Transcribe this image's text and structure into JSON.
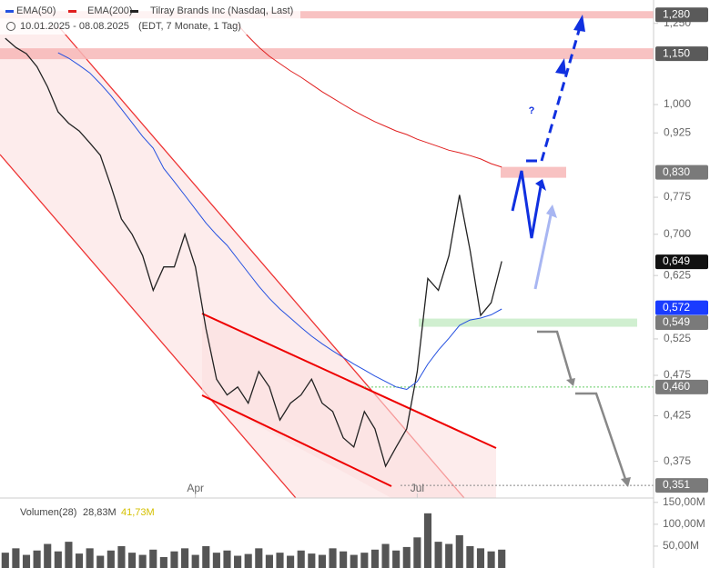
{
  "chart_data": {
    "type": "line",
    "title": "Tilray Brands Inc (Nasdaq, Last)",
    "subtitle": "10.01.2025 - 08.08.2025",
    "subtitle_note": "(EDT, 7 Monate, 1 Tag)",
    "categories": [
      null,
      null,
      null,
      null,
      null,
      null,
      null,
      null,
      null,
      null,
      null,
      null,
      null,
      null,
      null,
      null,
      null,
      null,
      "Apr",
      null,
      null,
      null,
      null,
      null,
      null,
      null,
      null,
      null,
      null,
      null,
      null,
      null,
      null,
      null,
      null,
      null,
      null,
      null,
      null,
      "Jul",
      null,
      null,
      null,
      null,
      null,
      null,
      null,
      null
    ],
    "log_scale": true,
    "ylim": [
      0.339,
      1.333
    ],
    "yticks": [
      {
        "value": 1.25,
        "label": "1,250"
      },
      {
        "value": 1.0,
        "label": "1,000"
      },
      {
        "value": 0.925,
        "label": "0,925"
      },
      {
        "value": 0.775,
        "label": "0,775"
      },
      {
        "value": 0.7,
        "label": "0,700"
      },
      {
        "value": 0.625,
        "label": "0,625"
      },
      {
        "value": 0.525,
        "label": "0,525"
      },
      {
        "value": 0.475,
        "label": "0,475"
      },
      {
        "value": 0.425,
        "label": "0,425"
      },
      {
        "value": 0.375,
        "label": "0,375"
      }
    ],
    "series": [
      {
        "name": "Tilray Brands Inc (Nasdaq, Last)",
        "color": "#222222",
        "values": [
          1.2,
          1.17,
          1.15,
          1.11,
          1.05,
          0.98,
          0.95,
          0.93,
          0.9,
          0.87,
          0.8,
          0.73,
          0.7,
          0.66,
          0.6,
          0.64,
          0.64,
          0.7,
          0.64,
          0.54,
          0.47,
          0.45,
          0.46,
          0.44,
          0.48,
          0.46,
          0.42,
          0.44,
          0.45,
          0.47,
          0.44,
          0.43,
          0.4,
          0.39,
          0.43,
          0.41,
          0.37,
          0.39,
          0.41,
          0.48,
          0.62,
          0.6,
          0.66,
          0.78,
          0.67,
          0.56,
          0.58,
          0.65
        ]
      },
      {
        "name": "EMA(50)",
        "color": "#2450e0",
        "values": [
          null,
          null,
          null,
          null,
          null,
          1.153,
          1.136,
          1.114,
          1.091,
          1.059,
          1.025,
          0.988,
          0.951,
          0.916,
          0.887,
          0.839,
          0.809,
          0.779,
          0.75,
          0.722,
          0.699,
          0.679,
          0.654,
          0.63,
          0.607,
          0.587,
          0.57,
          0.556,
          0.542,
          0.529,
          0.518,
          0.508,
          0.499,
          0.49,
          0.482,
          0.474,
          0.467,
          0.46,
          0.457,
          0.467,
          0.49,
          0.509,
          0.526,
          0.545,
          0.553,
          0.556,
          0.561,
          0.57
        ]
      },
      {
        "name": "EMA(200)",
        "color": "#e02020",
        "values": [
          null,
          null,
          null,
          null,
          null,
          null,
          null,
          null,
          null,
          null,
          null,
          null,
          null,
          null,
          null,
          null,
          null,
          null,
          null,
          null,
          null,
          null,
          1.246,
          1.206,
          1.171,
          1.142,
          1.119,
          1.097,
          1.078,
          1.057,
          1.036,
          1.018,
          1.0,
          0.983,
          0.968,
          0.954,
          0.942,
          0.93,
          0.921,
          0.909,
          0.9,
          0.891,
          0.882,
          0.876,
          0.869,
          0.861,
          0.85,
          0.842
        ]
      }
    ],
    "price_labels": [
      {
        "value": 1.28,
        "label": "1,280",
        "color": "#5a5a5a"
      },
      {
        "value": 1.15,
        "label": "1,150",
        "color": "#5a5a5a"
      },
      {
        "value": 0.83,
        "label": "0,830",
        "color": "#7a7a7a"
      },
      {
        "value": 0.649,
        "label": "0,649",
        "color": "#111111"
      },
      {
        "value": 0.572,
        "label": "0,572",
        "color": "#1a3cff"
      },
      {
        "value": 0.549,
        "label": "0,549",
        "color": "#7a7a7a"
      },
      {
        "value": 0.46,
        "label": "0,460",
        "color": "#7a7a7a"
      },
      {
        "value": 0.351,
        "label": "0,351",
        "color": "#7a7a7a"
      }
    ],
    "annotation": "?",
    "volume": {
      "title": "Volumen(28)",
      "avg_label": "28,83M",
      "last_label": "41,73M",
      "ylim": [
        0,
        160
      ],
      "yticks": [
        {
          "value": 150,
          "label": "150,00M"
        },
        {
          "value": 100,
          "label": "100,00M"
        },
        {
          "value": 50,
          "label": "50,00M"
        }
      ],
      "color": "#555555",
      "values": [
        35,
        45,
        30,
        40,
        55,
        38,
        60,
        33,
        45,
        28,
        40,
        50,
        35,
        30,
        42,
        25,
        38,
        45,
        30,
        50,
        35,
        40,
        28,
        32,
        45,
        30,
        35,
        28,
        40,
        33,
        30,
        45,
        38,
        30,
        35,
        42,
        55,
        40,
        48,
        70,
        125,
        60,
        55,
        75,
        50,
        45,
        38,
        42
      ]
    }
  }
}
